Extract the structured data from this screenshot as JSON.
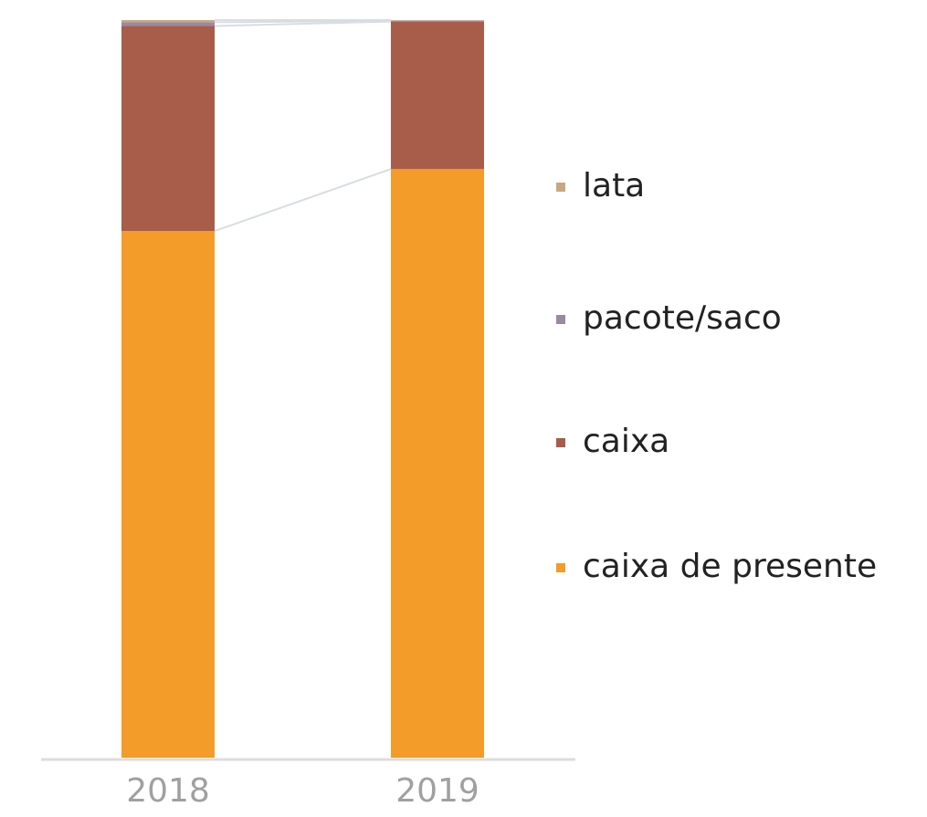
{
  "chart_data": {
    "type": "stacked_bar",
    "categories": [
      "2018",
      "2019"
    ],
    "ylim": [
      0,
      100
    ],
    "series": [
      {
        "name": "caixa de presente",
        "color": "#f39c2a",
        "values": [
          71.4,
          79.8
        ]
      },
      {
        "name": "caixa",
        "color": "#a85d4b",
        "values": [
          27.8,
          20.0
        ]
      },
      {
        "name": "pacote/saco",
        "color": "#9a8aa0",
        "values": [
          0.5,
          0.1
        ]
      },
      {
        "name": "lata",
        "color": "#c8a882",
        "values": [
          0.3,
          0.1
        ]
      }
    ]
  }
}
